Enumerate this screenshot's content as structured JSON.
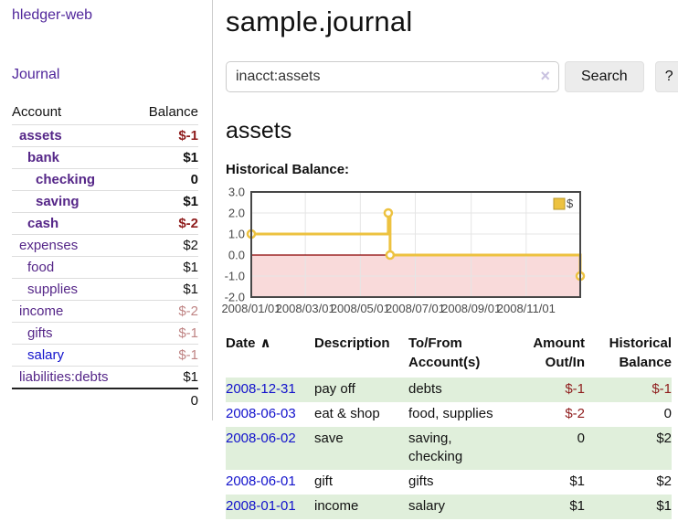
{
  "colors": {
    "purple_link": "#50269b",
    "account_link": "#552688",
    "blue_link": "#1212cc",
    "negative_strong": "#8f1d1d",
    "negative_soft": "#bf8484",
    "row_stripe_green": "#e0efdb",
    "chart_series": "#edc240",
    "chart_series_edge": "#b89728",
    "chart_negative_fill": "#f9dada",
    "chart_zero_line": "#8b0000",
    "chart_border": "#474747",
    "chart_grid": "#e5e5e5",
    "chart_tick_text": "#4a4a4a"
  },
  "icons": {
    "clear": "×",
    "sort_asc": "∧"
  },
  "app": {
    "brand": "hledger-web"
  },
  "sidebar": {
    "journal_link": "Journal",
    "accounts_header": {
      "account": "Account",
      "balance": "Balance"
    },
    "accounts": [
      {
        "name": "assets",
        "depth": 0,
        "balance": "$-1",
        "matched": true,
        "balance_tone": "neg-strong",
        "link_tone": "purple"
      },
      {
        "name": "bank",
        "depth": 1,
        "balance": "$1",
        "matched": true,
        "balance_tone": "normal",
        "link_tone": "purple"
      },
      {
        "name": "checking",
        "depth": 2,
        "balance": "0",
        "matched": true,
        "balance_tone": "normal",
        "link_tone": "purple"
      },
      {
        "name": "saving",
        "depth": 2,
        "balance": "$1",
        "matched": true,
        "balance_tone": "normal",
        "link_tone": "purple"
      },
      {
        "name": "cash",
        "depth": 1,
        "balance": "$-2",
        "matched": true,
        "balance_tone": "neg-strong",
        "link_tone": "purple"
      },
      {
        "name": "expenses",
        "depth": 0,
        "balance": "$2",
        "matched": false,
        "balance_tone": "normal",
        "link_tone": "purple"
      },
      {
        "name": "food",
        "depth": 1,
        "balance": "$1",
        "matched": false,
        "balance_tone": "normal",
        "link_tone": "purple"
      },
      {
        "name": "supplies",
        "depth": 1,
        "balance": "$1",
        "matched": false,
        "balance_tone": "normal",
        "link_tone": "purple"
      },
      {
        "name": "income",
        "depth": 0,
        "balance": "$-2",
        "matched": false,
        "balance_tone": "neg-soft",
        "link_tone": "purple"
      },
      {
        "name": "gifts",
        "depth": 1,
        "balance": "$-1",
        "matched": false,
        "balance_tone": "neg-soft",
        "link_tone": "purple"
      },
      {
        "name": "salary",
        "depth": 1,
        "balance": "$-1",
        "matched": false,
        "balance_tone": "neg-soft",
        "link_tone": "blue"
      },
      {
        "name": "liabilities:debts",
        "depth": 0,
        "balance": "$1",
        "matched": false,
        "balance_tone": "normal",
        "link_tone": "purple"
      }
    ],
    "total": "0"
  },
  "main": {
    "title": "sample.journal",
    "search": {
      "query": "inacct:assets",
      "button": "Search",
      "help_button": "?"
    },
    "account_heading": "assets",
    "chart_label": "Historical Balance:"
  },
  "chart_data": {
    "type": "line",
    "title": "Historical Balance",
    "legend": {
      "label": "$",
      "position": "top-right"
    },
    "grid": true,
    "ylim": [
      -2,
      3
    ],
    "x_range": [
      "2008-01-01",
      "2008-12-31"
    ],
    "x_ticks": [
      {
        "date": "2008-01-01",
        "label": "2008/01/01"
      },
      {
        "date": "2008-03-01",
        "label": "2008/03/01"
      },
      {
        "date": "2008-05-01",
        "label": "2008/05/01"
      },
      {
        "date": "2008-07-01",
        "label": "2008/07/01"
      },
      {
        "date": "2008-09-01",
        "label": "2008/09/01"
      },
      {
        "date": "2008-11-01",
        "label": "2008/11/01"
      }
    ],
    "y_ticks": [
      {
        "value": 3,
        "label": "3.0"
      },
      {
        "value": 2,
        "label": "2.0"
      },
      {
        "value": 1,
        "label": "1.0"
      },
      {
        "value": 0,
        "label": "0.0"
      },
      {
        "value": -1,
        "label": "-1.0"
      },
      {
        "value": -2,
        "label": "-2.0"
      }
    ],
    "series": [
      {
        "name": "$",
        "steps": true,
        "points": [
          {
            "x": "2008-01-01",
            "y": 1
          },
          {
            "x": "2008-06-01",
            "y": 2
          },
          {
            "x": "2008-06-03",
            "y": 0
          },
          {
            "x": "2008-12-31",
            "y": -1
          }
        ]
      }
    ]
  },
  "register": {
    "columns": [
      {
        "label": "Date",
        "align": "left",
        "sorted": "asc"
      },
      {
        "label": "Description",
        "align": "left"
      },
      {
        "label": "To/From Account(s)",
        "align": "left"
      },
      {
        "label": "Amount Out/In",
        "align": "right"
      },
      {
        "label": "Historical Balance",
        "align": "right"
      }
    ],
    "rows": [
      {
        "date": "2008-12-31",
        "description": "pay off",
        "accounts": "debts",
        "amount": "$-1",
        "amount_negative": true,
        "balance": "$-1",
        "balance_negative": true
      },
      {
        "date": "2008-06-03",
        "description": "eat & shop",
        "accounts": "food, supplies",
        "amount": "$-2",
        "amount_negative": true,
        "balance": "0",
        "balance_negative": false
      },
      {
        "date": "2008-06-02",
        "description": "save",
        "accounts": "saving, checking",
        "amount": "0",
        "amount_negative": false,
        "balance": "$2",
        "balance_negative": false
      },
      {
        "date": "2008-06-01",
        "description": "gift",
        "accounts": "gifts",
        "amount": "$1",
        "amount_negative": false,
        "balance": "$2",
        "balance_negative": false
      },
      {
        "date": "2008-01-01",
        "description": "income",
        "accounts": "salary",
        "amount": "$1",
        "amount_negative": false,
        "balance": "$1",
        "balance_negative": false
      }
    ]
  }
}
